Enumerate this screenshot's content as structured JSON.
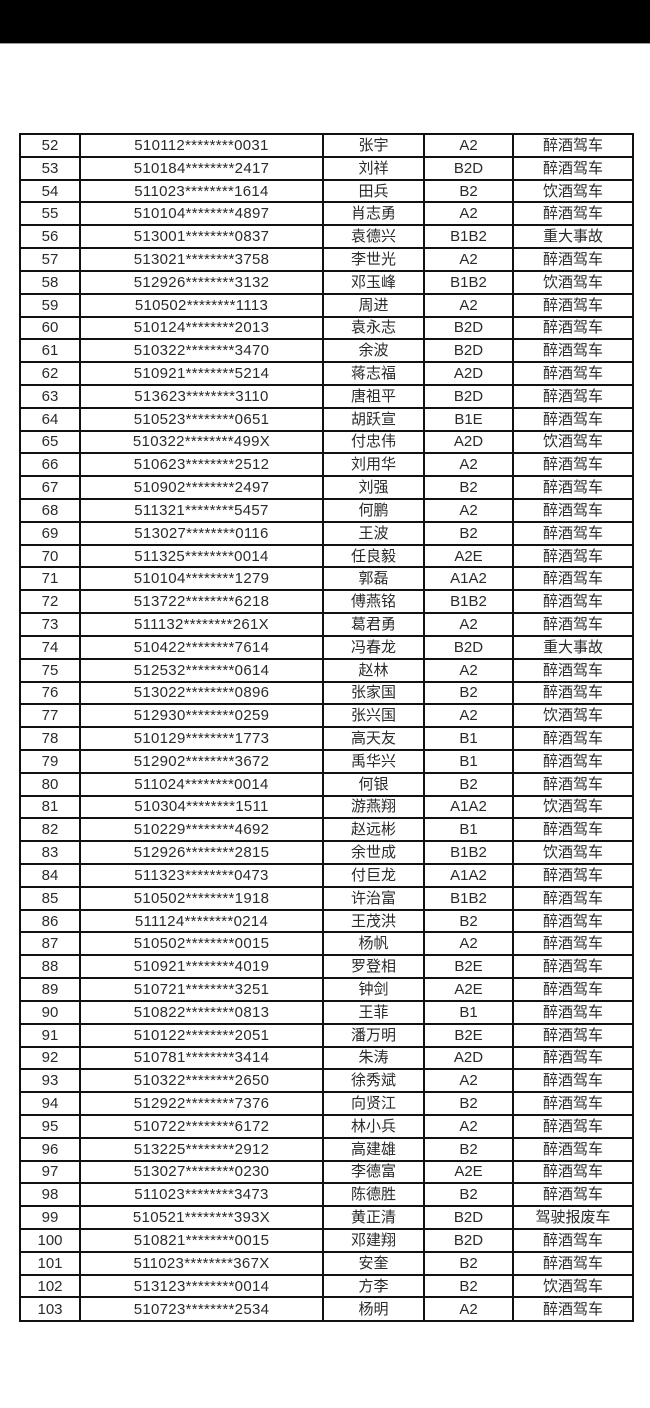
{
  "page": {
    "background_color": "#ffffff",
    "status_bar_color": "#000000",
    "table_border_color": "#111111",
    "text_color": "#2a2a2a"
  },
  "table": {
    "columns": [
      "row-number",
      "masked-id-number",
      "name",
      "license-class",
      "violation-type"
    ],
    "rows": [
      {
        "no": "52",
        "id": "510112********0031",
        "name": "张宇",
        "license": "A2",
        "violation": "醉酒驾车"
      },
      {
        "no": "53",
        "id": "510184********2417",
        "name": "刘祥",
        "license": "B2D",
        "violation": "醉酒驾车"
      },
      {
        "no": "54",
        "id": "511023********1614",
        "name": "田兵",
        "license": "B2",
        "violation": "饮酒驾车"
      },
      {
        "no": "55",
        "id": "510104********4897",
        "name": "肖志勇",
        "license": "A2",
        "violation": "醉酒驾车"
      },
      {
        "no": "56",
        "id": "513001********0837",
        "name": "袁德兴",
        "license": "B1B2",
        "violation": "重大事故"
      },
      {
        "no": "57",
        "id": "513021********3758",
        "name": "李世光",
        "license": "A2",
        "violation": "醉酒驾车"
      },
      {
        "no": "58",
        "id": "512926********3132",
        "name": "邓玉峰",
        "license": "B1B2",
        "violation": "饮酒驾车"
      },
      {
        "no": "59",
        "id": "510502********1113",
        "name": "周进",
        "license": "A2",
        "violation": "醉酒驾车"
      },
      {
        "no": "60",
        "id": "510124********2013",
        "name": "袁永志",
        "license": "B2D",
        "violation": "醉酒驾车"
      },
      {
        "no": "61",
        "id": "510322********3470",
        "name": "余波",
        "license": "B2D",
        "violation": "醉酒驾车"
      },
      {
        "no": "62",
        "id": "510921********5214",
        "name": "蒋志福",
        "license": "A2D",
        "violation": "醉酒驾车"
      },
      {
        "no": "63",
        "id": "513623********3110",
        "name": "唐祖平",
        "license": "B2D",
        "violation": "醉酒驾车"
      },
      {
        "no": "64",
        "id": "510523********0651",
        "name": "胡跃宣",
        "license": "B1E",
        "violation": "醉酒驾车"
      },
      {
        "no": "65",
        "id": "510322********499X",
        "name": "付忠伟",
        "license": "A2D",
        "violation": "饮酒驾车"
      },
      {
        "no": "66",
        "id": "510623********2512",
        "name": "刘用华",
        "license": "A2",
        "violation": "醉酒驾车"
      },
      {
        "no": "67",
        "id": "510902********2497",
        "name": "刘强",
        "license": "B2",
        "violation": "醉酒驾车"
      },
      {
        "no": "68",
        "id": "511321********5457",
        "name": "何鹏",
        "license": "A2",
        "violation": "醉酒驾车"
      },
      {
        "no": "69",
        "id": "513027********0116",
        "name": "王波",
        "license": "B2",
        "violation": "醉酒驾车"
      },
      {
        "no": "70",
        "id": "511325********0014",
        "name": "任良毅",
        "license": "A2E",
        "violation": "醉酒驾车"
      },
      {
        "no": "71",
        "id": "510104********1279",
        "name": "郭磊",
        "license": "A1A2",
        "violation": "醉酒驾车"
      },
      {
        "no": "72",
        "id": "513722********6218",
        "name": "傅燕铭",
        "license": "B1B2",
        "violation": "醉酒驾车"
      },
      {
        "no": "73",
        "id": "511132********261X",
        "name": "葛君勇",
        "license": "A2",
        "violation": "醉酒驾车"
      },
      {
        "no": "74",
        "id": "510422********7614",
        "name": "冯春龙",
        "license": "B2D",
        "violation": "重大事故"
      },
      {
        "no": "75",
        "id": "512532********0614",
        "name": "赵林",
        "license": "A2",
        "violation": "醉酒驾车"
      },
      {
        "no": "76",
        "id": "513022********0896",
        "name": "张家国",
        "license": "B2",
        "violation": "醉酒驾车"
      },
      {
        "no": "77",
        "id": "512930********0259",
        "name": "张兴国",
        "license": "A2",
        "violation": "饮酒驾车"
      },
      {
        "no": "78",
        "id": "510129********1773",
        "name": "高天友",
        "license": "B1",
        "violation": "醉酒驾车"
      },
      {
        "no": "79",
        "id": "512902********3672",
        "name": "禹华兴",
        "license": "B1",
        "violation": "醉酒驾车"
      },
      {
        "no": "80",
        "id": "511024********0014",
        "name": "何银",
        "license": "B2",
        "violation": "醉酒驾车"
      },
      {
        "no": "81",
        "id": "510304********1511",
        "name": "游燕翔",
        "license": "A1A2",
        "violation": "饮酒驾车"
      },
      {
        "no": "82",
        "id": "510229********4692",
        "name": "赵远彬",
        "license": "B1",
        "violation": "醉酒驾车"
      },
      {
        "no": "83",
        "id": "512926********2815",
        "name": "余世成",
        "license": "B1B2",
        "violation": "饮酒驾车"
      },
      {
        "no": "84",
        "id": "511323********0473",
        "name": "付巨龙",
        "license": "A1A2",
        "violation": "醉酒驾车"
      },
      {
        "no": "85",
        "id": "510502********1918",
        "name": "许治富",
        "license": "B1B2",
        "violation": "醉酒驾车"
      },
      {
        "no": "86",
        "id": "511124********0214",
        "name": "王茂洪",
        "license": "B2",
        "violation": "醉酒驾车"
      },
      {
        "no": "87",
        "id": "510502********0015",
        "name": "杨帆",
        "license": "A2",
        "violation": "醉酒驾车"
      },
      {
        "no": "88",
        "id": "510921********4019",
        "name": "罗登相",
        "license": "B2E",
        "violation": "醉酒驾车"
      },
      {
        "no": "89",
        "id": "510721********3251",
        "name": "钟剑",
        "license": "A2E",
        "violation": "醉酒驾车"
      },
      {
        "no": "90",
        "id": "510822********0813",
        "name": "王菲",
        "license": "B1",
        "violation": "醉酒驾车"
      },
      {
        "no": "91",
        "id": "510122********2051",
        "name": "潘万明",
        "license": "B2E",
        "violation": "醉酒驾车"
      },
      {
        "no": "92",
        "id": "510781********3414",
        "name": "朱涛",
        "license": "A2D",
        "violation": "醉酒驾车"
      },
      {
        "no": "93",
        "id": "510322********2650",
        "name": "徐秀斌",
        "license": "A2",
        "violation": "醉酒驾车"
      },
      {
        "no": "94",
        "id": "512922********7376",
        "name": "向贤江",
        "license": "B2",
        "violation": "醉酒驾车"
      },
      {
        "no": "95",
        "id": "510722********6172",
        "name": "林小兵",
        "license": "A2",
        "violation": "醉酒驾车"
      },
      {
        "no": "96",
        "id": "513225********2912",
        "name": "高建雄",
        "license": "B2",
        "violation": "醉酒驾车"
      },
      {
        "no": "97",
        "id": "513027********0230",
        "name": "李德富",
        "license": "A2E",
        "violation": "醉酒驾车"
      },
      {
        "no": "98",
        "id": "511023********3473",
        "name": "陈德胜",
        "license": "B2",
        "violation": "醉酒驾车"
      },
      {
        "no": "99",
        "id": "510521********393X",
        "name": "黄正清",
        "license": "B2D",
        "violation": "驾驶报废车"
      },
      {
        "no": "100",
        "id": "510821********0015",
        "name": "邓建翔",
        "license": "B2D",
        "violation": "醉酒驾车"
      },
      {
        "no": "101",
        "id": "511023********367X",
        "name": "安奎",
        "license": "B2",
        "violation": "醉酒驾车"
      },
      {
        "no": "102",
        "id": "513123********0014",
        "name": "方李",
        "license": "B2",
        "violation": "饮酒驾车"
      },
      {
        "no": "103",
        "id": "510723********2534",
        "name": "杨明",
        "license": "A2",
        "violation": "醉酒驾车"
      }
    ]
  }
}
